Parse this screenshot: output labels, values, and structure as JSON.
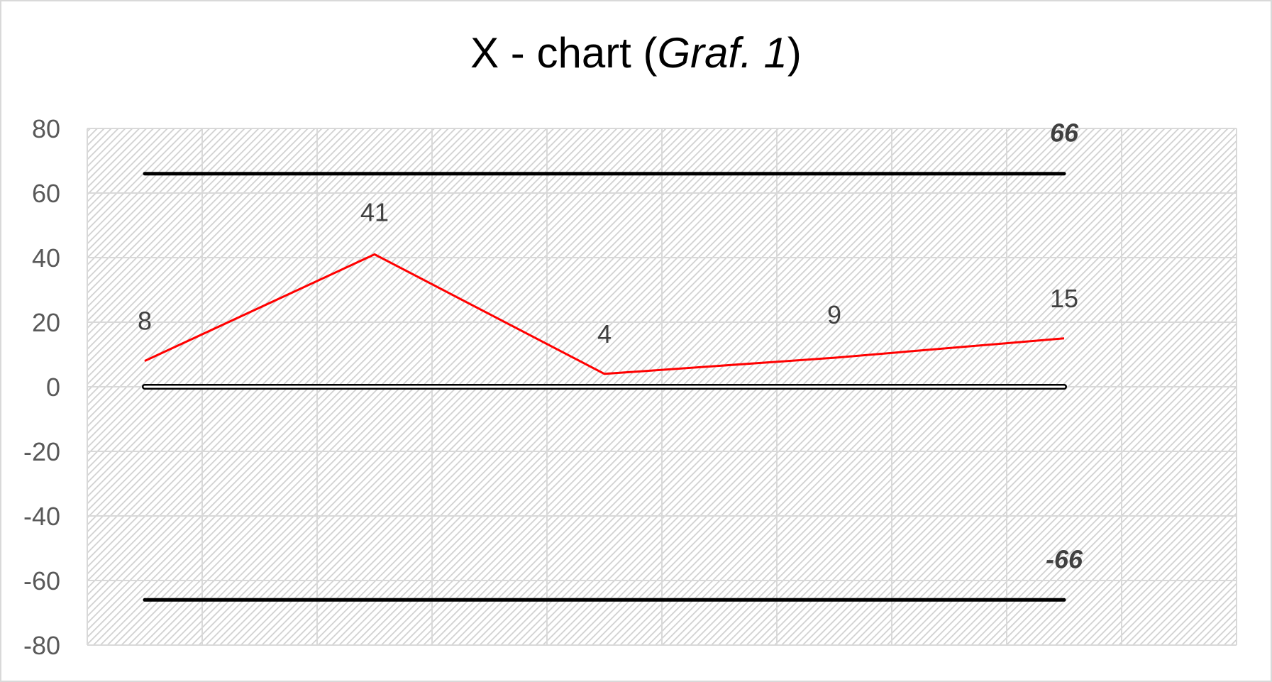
{
  "chart_data": {
    "type": "line",
    "title_parts": {
      "prefix": "X - chart (",
      "italic": "Graf. 1",
      "suffix": ")"
    },
    "xlabel": "",
    "ylabel": "",
    "ylim": [
      -80,
      80
    ],
    "y_ticks": [
      80,
      60,
      40,
      20,
      0,
      -20,
      -40,
      -60,
      -80
    ],
    "category_count": 10,
    "grid": true,
    "legend": "none",
    "series": [
      {
        "role": "measurement",
        "color": "#ff0000",
        "x": [
          1,
          3,
          5,
          7,
          9
        ],
        "values": [
          8,
          41,
          4,
          9,
          15
        ],
        "labels": [
          "8",
          "41",
          "4",
          "9",
          "15"
        ]
      },
      {
        "role": "upper-limit",
        "color": "#000000",
        "x": [
          1,
          9
        ],
        "values": [
          66,
          66
        ],
        "end_label": "66"
      },
      {
        "role": "center-line",
        "color": "#000000",
        "x": [
          1,
          9
        ],
        "values": [
          0,
          0
        ]
      },
      {
        "role": "lower-limit",
        "color": "#000000",
        "x": [
          1,
          9
        ],
        "values": [
          -66,
          -66
        ],
        "end_label": "-66"
      }
    ]
  }
}
